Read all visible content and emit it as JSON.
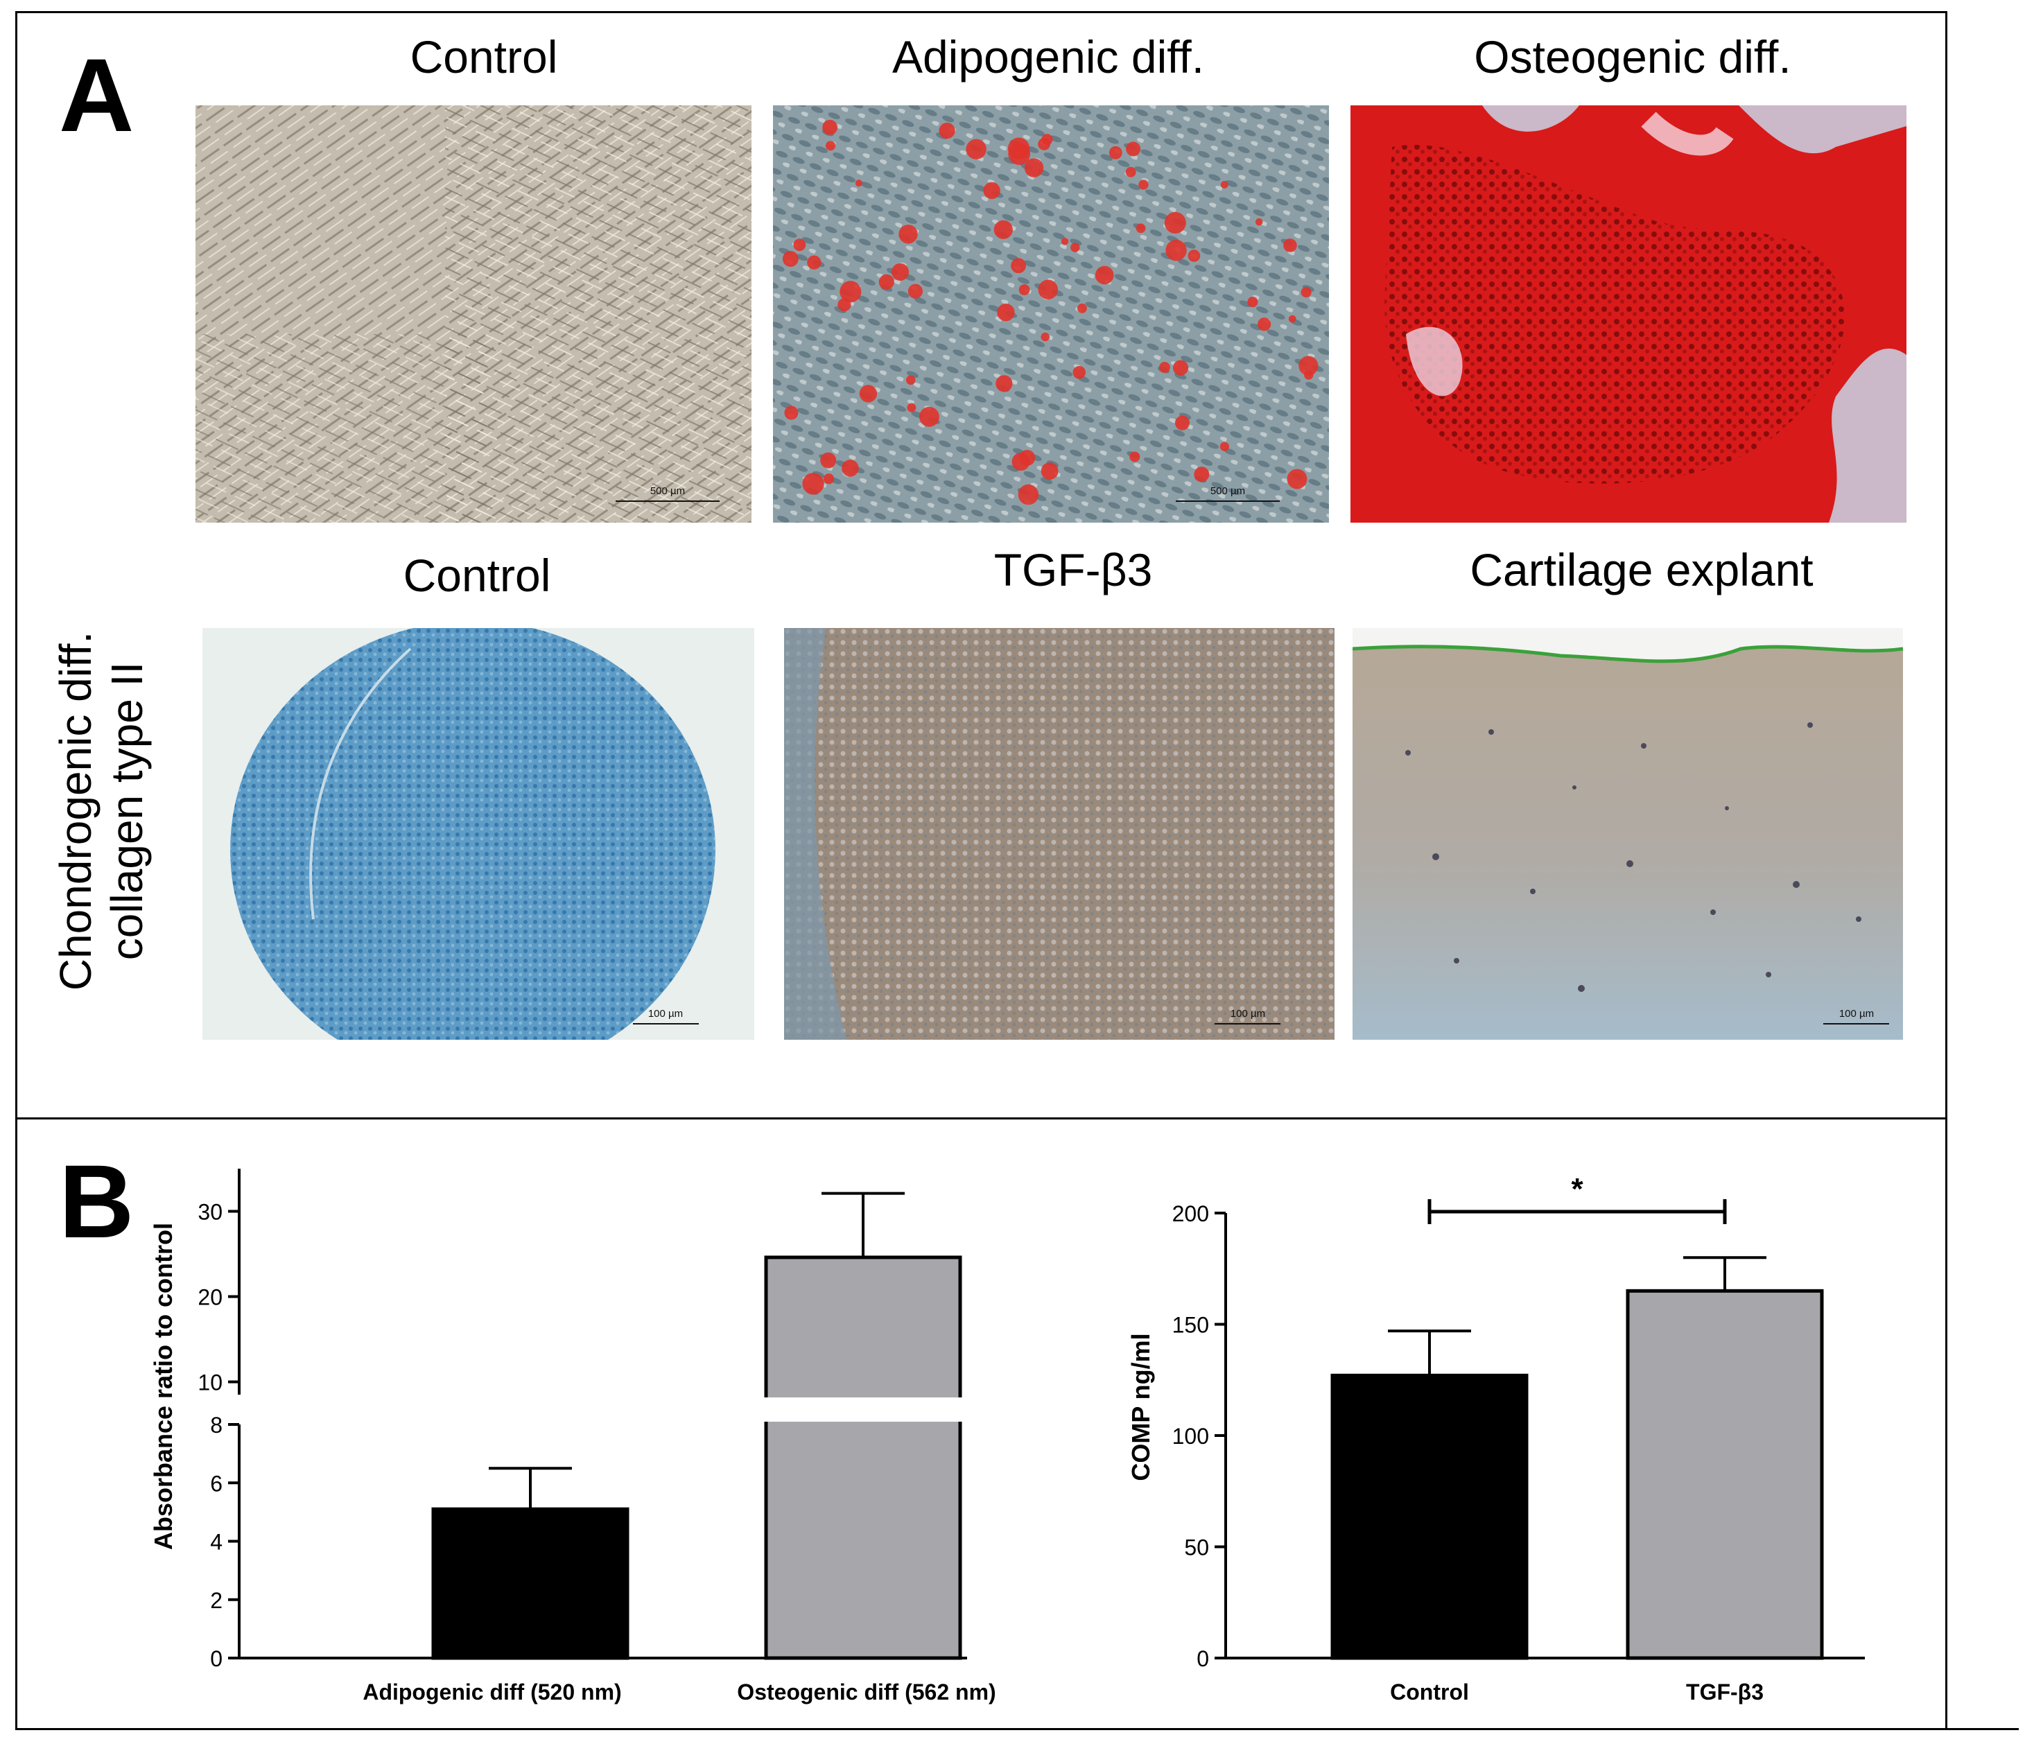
{
  "panel_a": {
    "letter": "A",
    "row1_titles": [
      "Control",
      "Adipogenic diff.",
      "Osteogenic diff."
    ],
    "row2_titles": [
      "Control",
      "TGF-β3",
      "Cartilage  explant"
    ],
    "side_label_line1": "Chondrogenic diff.",
    "side_label_line2": "collagen type II",
    "scale_row1": [
      "500 µm",
      "500 µm"
    ],
    "scale_row2": [
      "100 µm",
      "100 µm",
      "100 µm"
    ],
    "image_colors": {
      "control_culture": "#c4bcae",
      "adipogenic_bg": "#8d9fa6",
      "adipogenic_droplet": "#e0332b",
      "osteogenic_stain": "#d91a1a",
      "osteogenic_bg": "#cbb8c8",
      "pellet_control": "#5d9cc7",
      "pellet_tgf": "#9a8a7c",
      "explant": "#b5a897",
      "explant_edge": "#3aa13a"
    }
  },
  "panel_b": {
    "letter": "B",
    "chart_data": [
      {
        "type": "bar",
        "ylabel": "Absorbance ratio to control",
        "categories": [
          "Adipogenic diff (520 nm)",
          "Osteogenic diff (562 nm)"
        ],
        "values": [
          5.1,
          24.6
        ],
        "errors": [
          1.4,
          7.5
        ],
        "colors": [
          "#000000",
          "#a7a7ab"
        ],
        "y_axis_break": true,
        "ylim_lower": [
          0,
          8
        ],
        "ylim_upper": [
          8.5,
          35
        ],
        "yticks_lower": [
          "0",
          "2",
          "4",
          "6",
          "8"
        ],
        "yticks_upper": [
          "10",
          "20",
          "30"
        ]
      },
      {
        "type": "bar",
        "ylabel": "COMP ng/ml",
        "categories": [
          "Control",
          "TGF-β3"
        ],
        "values": [
          127,
          165
        ],
        "errors": [
          20,
          15
        ],
        "colors": [
          "#000000",
          "#a7a7ab"
        ],
        "ylim": [
          0,
          200
        ],
        "yticks": [
          "0",
          "50",
          "100",
          "150",
          "200"
        ],
        "significance": "*"
      }
    ]
  }
}
